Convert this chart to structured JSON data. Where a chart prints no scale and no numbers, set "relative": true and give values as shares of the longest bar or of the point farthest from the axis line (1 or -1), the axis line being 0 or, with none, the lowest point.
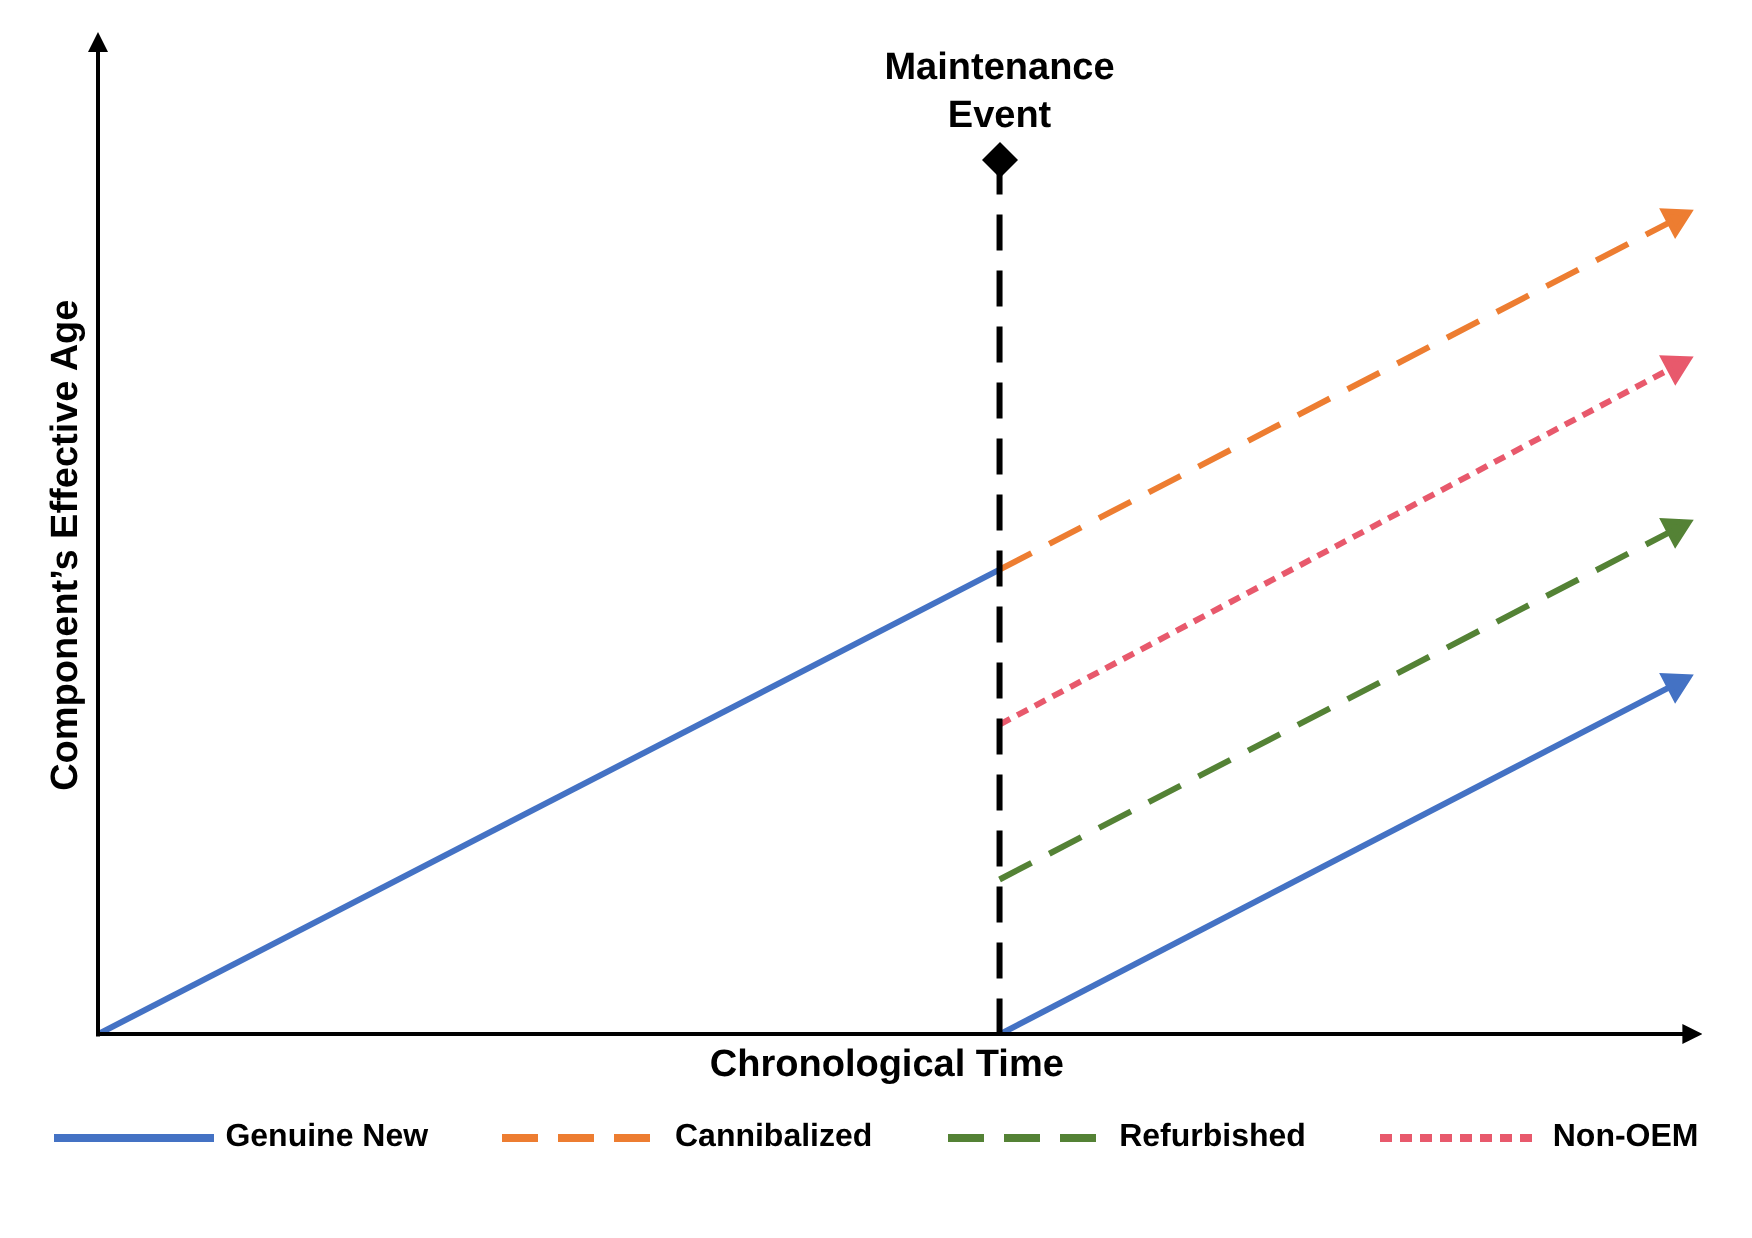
{
  "chart_data": {
    "type": "line",
    "relative": true,
    "xlabel": "Chronological Time",
    "ylabel": "Component’s Effective Age",
    "categories": [
      null,
      null,
      null,
      null,
      null,
      null,
      null,
      null
    ],
    "series": [
      {
        "name": "Genuine New",
        "color": "#4472c4",
        "line_style": "solid",
        "values": [
          0,
          null,
          null,
          null,
          0.57,
          null,
          null,
          null
        ]
      },
      {
        "color": "#4472c4",
        "line_style": "solid",
        "values": [
          null,
          null,
          null,
          null,
          0,
          null,
          null,
          0.43
        ]
      },
      {
        "name": "Cannibalized",
        "color": "#ed7d31",
        "line_style": "dashed",
        "values": [
          null,
          null,
          null,
          null,
          0.57,
          null,
          null,
          1
        ]
      },
      {
        "name": "Refurbished",
        "color": "#548235",
        "line_style": "dashed",
        "values": [
          null,
          null,
          null,
          null,
          0.19,
          null,
          null,
          0.62
        ]
      },
      {
        "name": "Non-OEM",
        "color": "#e8596c",
        "line_style": "dotted",
        "values": [
          null,
          null,
          null,
          null,
          0.38,
          null,
          null,
          0.82
        ]
      }
    ],
    "annotations": [
      "Maintenance Event"
    ],
    "legend": "bottom",
    "grid": false
  }
}
